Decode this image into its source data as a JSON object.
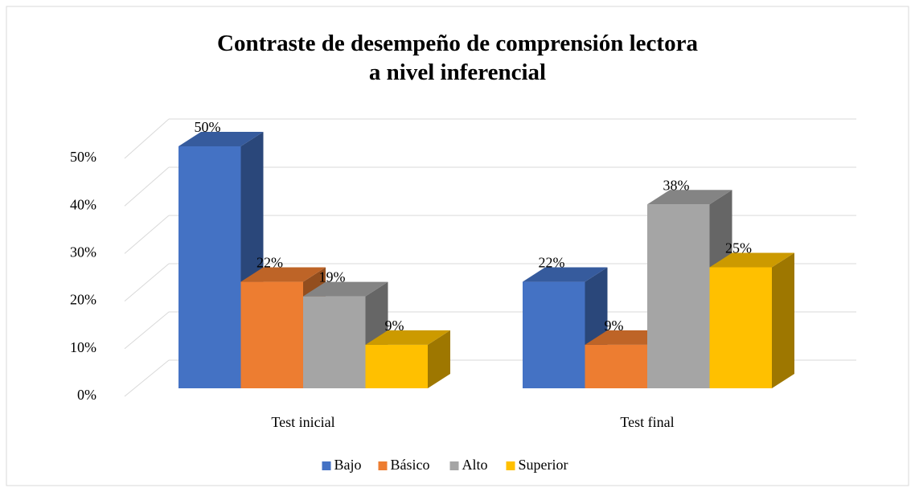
{
  "chart_data": {
    "type": "bar3d",
    "title": "Contraste de desempeño de comprensión lectora a nivel inferencial",
    "categories": [
      "Test inicial",
      "Test final"
    ],
    "series": [
      {
        "name": "Bajo",
        "color": "#4472c4",
        "values": [
          50,
          22
        ],
        "value_labels": [
          "50%",
          "22%"
        ]
      },
      {
        "name": "Básico",
        "color": "#ed7d31",
        "values": [
          22,
          9
        ],
        "value_labels": [
          "22%",
          "9%"
        ]
      },
      {
        "name": "Alto",
        "color": "#a5a5a5",
        "values": [
          19,
          38
        ],
        "value_labels": [
          "19%",
          "38%"
        ]
      },
      {
        "name": "Superior",
        "color": "#ffc000",
        "values": [
          9,
          25
        ],
        "value_labels": [
          "9%",
          "25%"
        ]
      }
    ],
    "ylim": [
      0,
      50
    ],
    "yticks": [
      {
        "value": 0,
        "label": "0%"
      },
      {
        "value": 10,
        "label": "10%"
      },
      {
        "value": 20,
        "label": "20%"
      },
      {
        "value": 30,
        "label": "30%"
      },
      {
        "value": 40,
        "label": "40%"
      },
      {
        "value": 50,
        "label": "50%"
      }
    ],
    "grid": true,
    "legend": "bottom"
  }
}
